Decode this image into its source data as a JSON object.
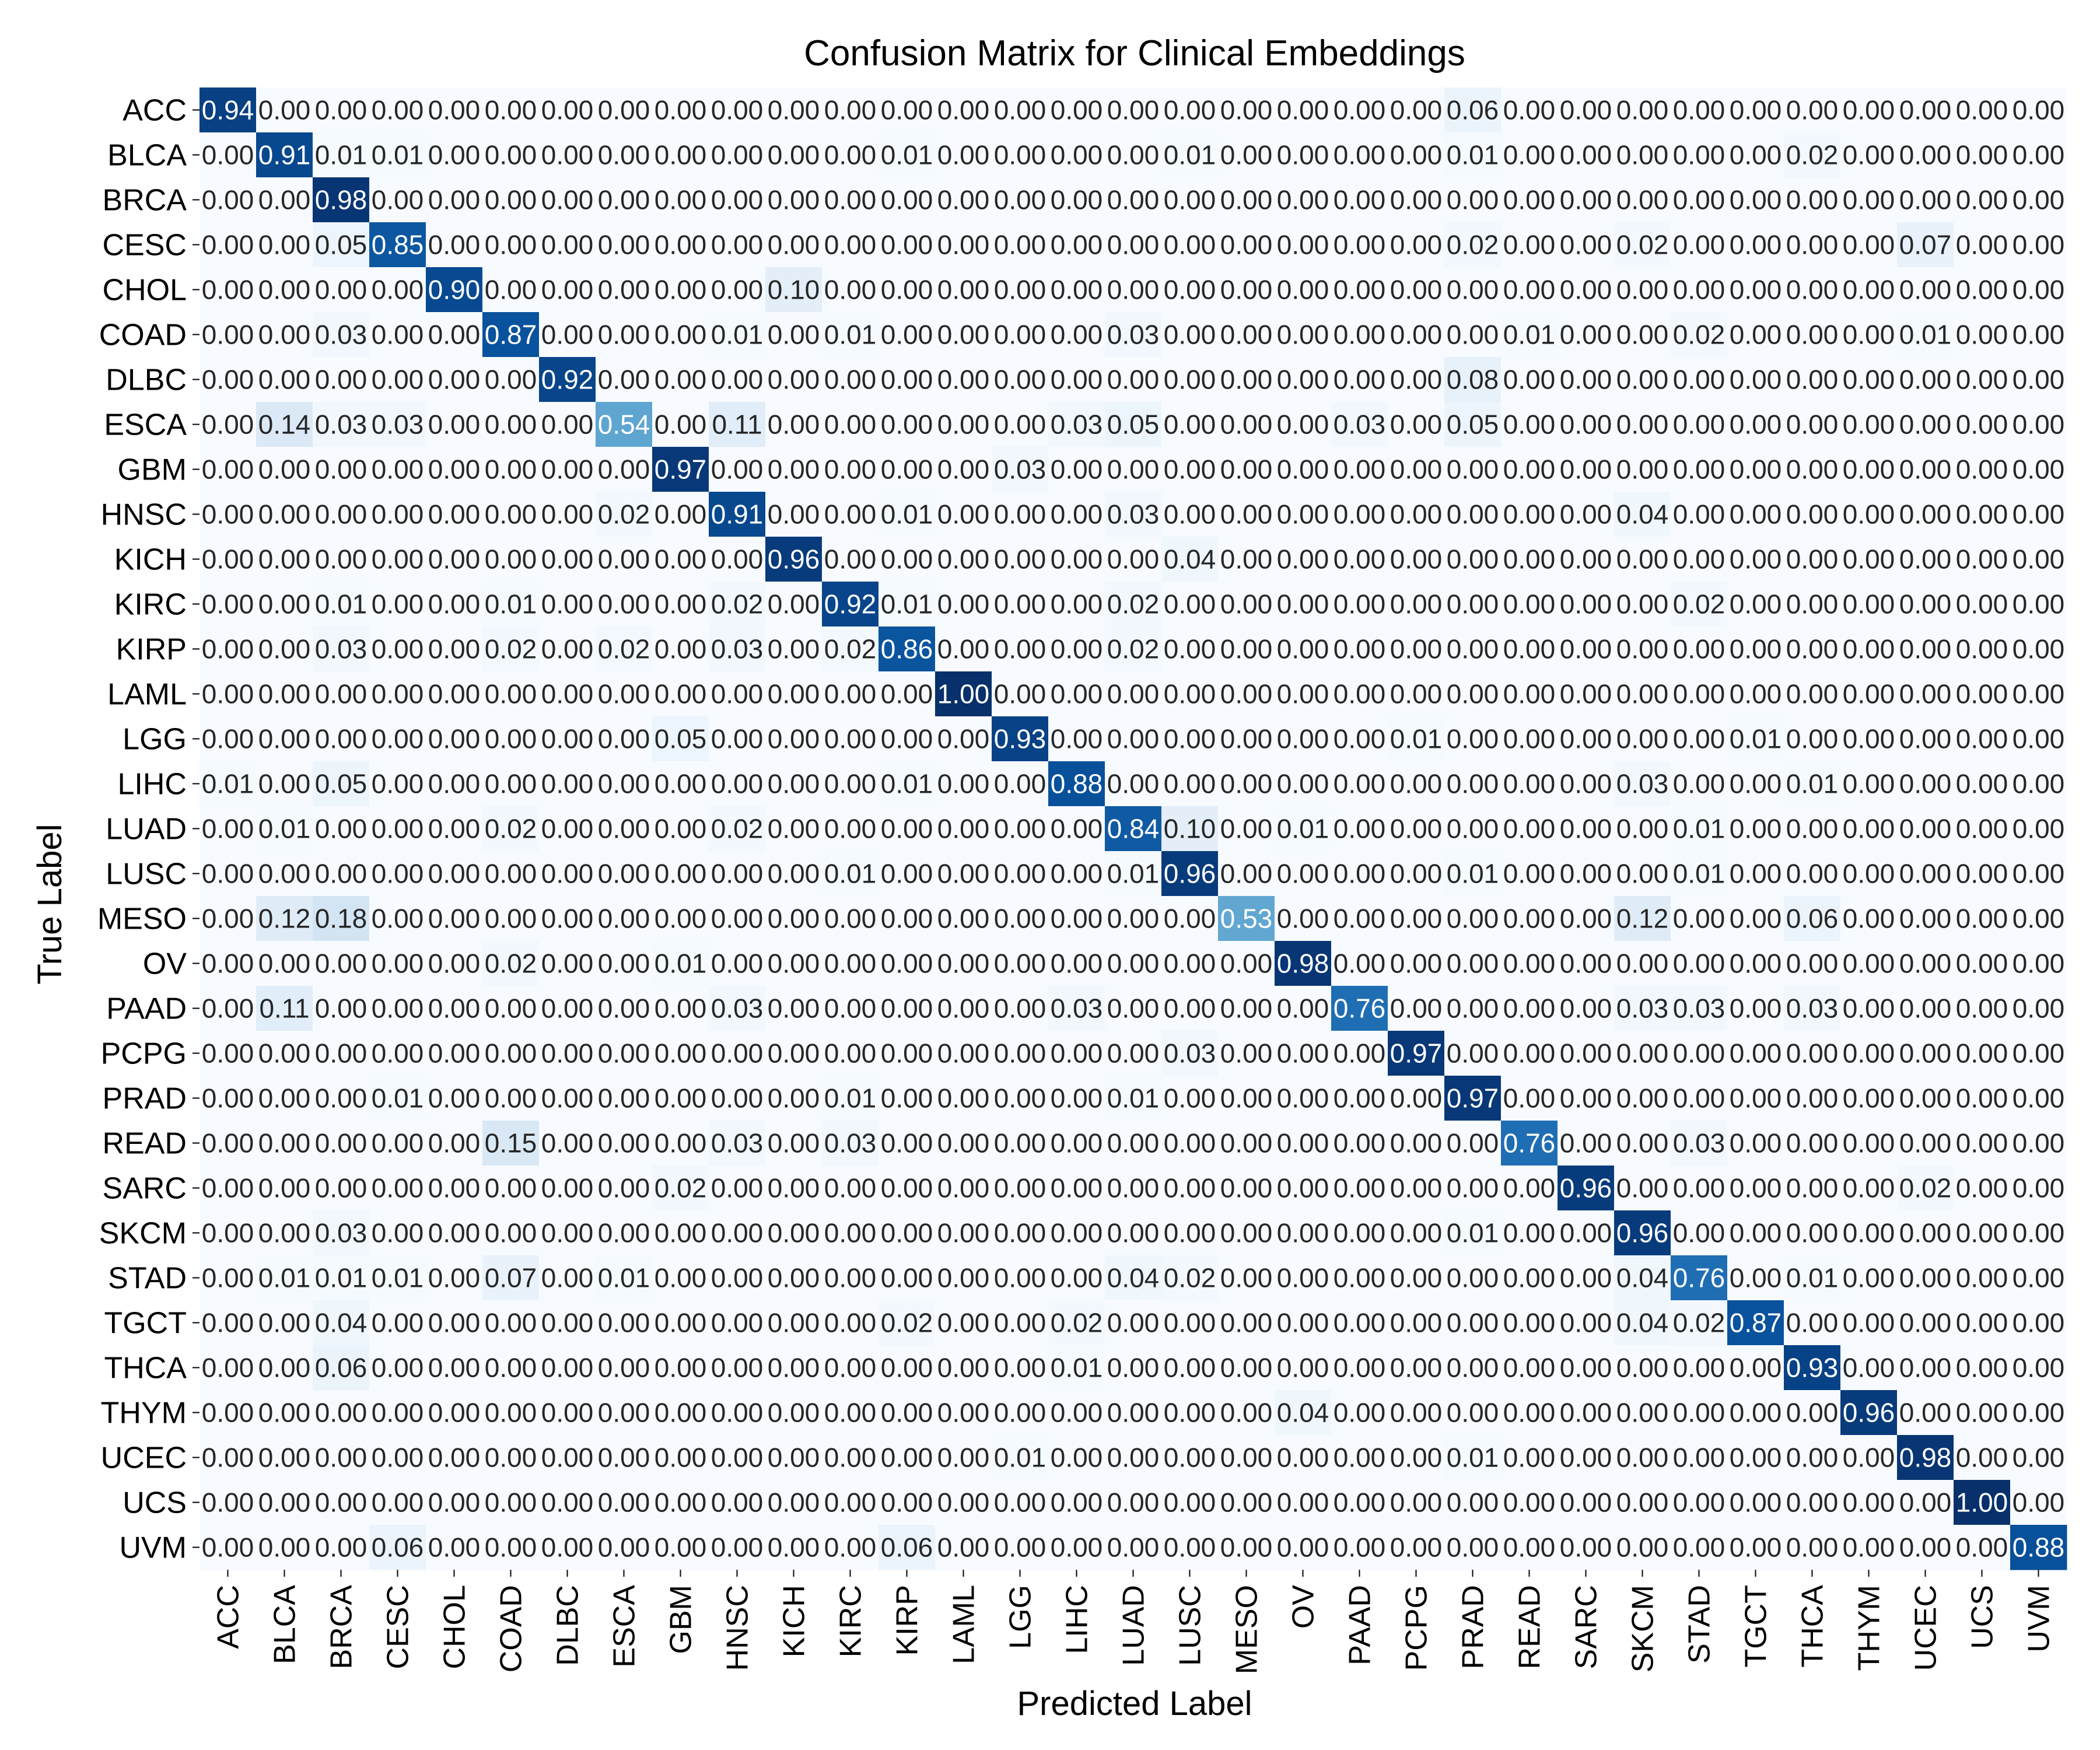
{
  "chart_data": {
    "type": "heatmap",
    "title": "Confusion Matrix for Clinical Embeddings",
    "xlabel": "Predicted Label",
    "ylabel": "True Label",
    "colormap": "Blues",
    "value_range": [
      0,
      1
    ],
    "value_format": "2 decimals",
    "colorbar": false,
    "labels": [
      "ACC",
      "BLCA",
      "BRCA",
      "CESC",
      "CHOL",
      "COAD",
      "DLBC",
      "ESCA",
      "GBM",
      "HNSC",
      "KICH",
      "KIRC",
      "KIRP",
      "LAML",
      "LGG",
      "LIHC",
      "LUAD",
      "LUSC",
      "MESO",
      "OV",
      "PAAD",
      "PCPG",
      "PRAD",
      "READ",
      "SARC",
      "SKCM",
      "STAD",
      "TGCT",
      "THCA",
      "THYM",
      "UCEC",
      "UCS",
      "UVM"
    ],
    "matrix": [
      [
        0.94,
        0,
        0,
        0,
        0,
        0,
        0,
        0,
        0,
        0,
        0,
        0,
        0,
        0,
        0,
        0,
        0,
        0,
        0,
        0,
        0,
        0,
        0.06,
        0,
        0,
        0,
        0,
        0,
        0,
        0,
        0,
        0,
        0
      ],
      [
        0,
        0.91,
        0.01,
        0.01,
        0,
        0,
        0,
        0,
        0,
        0,
        0,
        0,
        0.01,
        0,
        0,
        0,
        0,
        0.01,
        0,
        0,
        0,
        0,
        0.01,
        0,
        0,
        0,
        0,
        0,
        0.02,
        0,
        0,
        0,
        0
      ],
      [
        0,
        0,
        0.98,
        0,
        0,
        0,
        0,
        0,
        0,
        0,
        0,
        0,
        0,
        0,
        0,
        0,
        0,
        0,
        0,
        0,
        0,
        0,
        0,
        0,
        0,
        0,
        0,
        0,
        0,
        0,
        0,
        0,
        0
      ],
      [
        0,
        0,
        0.05,
        0.85,
        0,
        0,
        0,
        0,
        0,
        0,
        0,
        0,
        0,
        0,
        0,
        0,
        0,
        0,
        0,
        0,
        0,
        0,
        0.02,
        0,
        0,
        0.02,
        0,
        0,
        0,
        0,
        0.07,
        0,
        0
      ],
      [
        0,
        0,
        0,
        0,
        0.9,
        0,
        0,
        0,
        0,
        0,
        0.1,
        0,
        0,
        0,
        0,
        0,
        0,
        0,
        0,
        0,
        0,
        0,
        0,
        0,
        0,
        0,
        0,
        0,
        0,
        0,
        0,
        0,
        0
      ],
      [
        0,
        0,
        0.03,
        0,
        0,
        0.87,
        0,
        0,
        0,
        0.01,
        0,
        0.01,
        0,
        0,
        0,
        0,
        0.03,
        0,
        0,
        0,
        0,
        0,
        0,
        0.01,
        0,
        0,
        0.02,
        0,
        0,
        0,
        0.01,
        0,
        0
      ],
      [
        0,
        0,
        0,
        0,
        0,
        0,
        0.92,
        0,
        0,
        0,
        0,
        0,
        0,
        0,
        0,
        0,
        0,
        0,
        0,
        0,
        0,
        0,
        0.08,
        0,
        0,
        0,
        0,
        0,
        0,
        0,
        0,
        0,
        0
      ],
      [
        0,
        0.14,
        0.03,
        0.03,
        0,
        0,
        0,
        0.54,
        0,
        0.11,
        0,
        0,
        0,
        0,
        0,
        0.03,
        0.05,
        0,
        0,
        0,
        0.03,
        0,
        0.05,
        0,
        0,
        0,
        0,
        0,
        0,
        0,
        0,
        0,
        0
      ],
      [
        0,
        0,
        0,
        0,
        0,
        0,
        0,
        0,
        0.97,
        0,
        0,
        0,
        0,
        0,
        0.03,
        0,
        0,
        0,
        0,
        0,
        0,
        0,
        0,
        0,
        0,
        0,
        0,
        0,
        0,
        0,
        0,
        0,
        0
      ],
      [
        0,
        0,
        0,
        0,
        0,
        0,
        0,
        0.02,
        0,
        0.91,
        0,
        0,
        0.01,
        0,
        0,
        0,
        0.03,
        0,
        0,
        0,
        0,
        0,
        0,
        0,
        0,
        0.04,
        0,
        0,
        0,
        0,
        0,
        0,
        0
      ],
      [
        0,
        0,
        0,
        0,
        0,
        0,
        0,
        0,
        0,
        0,
        0.96,
        0,
        0,
        0,
        0,
        0,
        0,
        0.04,
        0,
        0,
        0,
        0,
        0,
        0,
        0,
        0,
        0,
        0,
        0,
        0,
        0,
        0,
        0
      ],
      [
        0,
        0,
        0.01,
        0,
        0,
        0.01,
        0,
        0,
        0,
        0.02,
        0,
        0.92,
        0.01,
        0,
        0,
        0,
        0.02,
        0,
        0,
        0,
        0,
        0,
        0,
        0,
        0,
        0,
        0.02,
        0,
        0,
        0,
        0,
        0,
        0
      ],
      [
        0,
        0,
        0.03,
        0,
        0,
        0.02,
        0,
        0.02,
        0,
        0.03,
        0,
        0.02,
        0.86,
        0,
        0,
        0,
        0.02,
        0,
        0,
        0,
        0,
        0,
        0,
        0,
        0,
        0,
        0,
        0,
        0,
        0,
        0,
        0,
        0
      ],
      [
        0,
        0,
        0,
        0,
        0,
        0,
        0,
        0,
        0,
        0,
        0,
        0,
        0,
        1.0,
        0,
        0,
        0,
        0,
        0,
        0,
        0,
        0,
        0,
        0,
        0,
        0,
        0,
        0,
        0,
        0,
        0,
        0,
        0
      ],
      [
        0,
        0,
        0,
        0,
        0,
        0,
        0,
        0,
        0.05,
        0,
        0,
        0,
        0,
        0,
        0.93,
        0,
        0,
        0,
        0,
        0,
        0,
        0.01,
        0,
        0,
        0,
        0,
        0,
        0.01,
        0,
        0,
        0,
        0,
        0
      ],
      [
        0.01,
        0,
        0.05,
        0,
        0,
        0,
        0,
        0,
        0,
        0,
        0,
        0,
        0.01,
        0,
        0,
        0.88,
        0,
        0,
        0,
        0,
        0,
        0,
        0,
        0,
        0,
        0.03,
        0,
        0,
        0.01,
        0,
        0,
        0,
        0
      ],
      [
        0,
        0.01,
        0,
        0,
        0,
        0.02,
        0,
        0,
        0,
        0.02,
        0,
        0,
        0,
        0,
        0,
        0,
        0.84,
        0.1,
        0,
        0.01,
        0,
        0,
        0,
        0,
        0,
        0,
        0.01,
        0,
        0,
        0,
        0,
        0,
        0
      ],
      [
        0,
        0,
        0,
        0,
        0,
        0,
        0,
        0,
        0,
        0,
        0,
        0.01,
        0,
        0,
        0,
        0,
        0.01,
        0.96,
        0,
        0,
        0,
        0,
        0.01,
        0,
        0,
        0,
        0.01,
        0,
        0,
        0,
        0,
        0,
        0
      ],
      [
        0,
        0.12,
        0.18,
        0,
        0,
        0,
        0,
        0,
        0,
        0,
        0,
        0,
        0,
        0,
        0,
        0,
        0,
        0,
        0.53,
        0,
        0,
        0,
        0,
        0,
        0,
        0.12,
        0,
        0,
        0.06,
        0,
        0,
        0,
        0
      ],
      [
        0,
        0,
        0,
        0,
        0,
        0.02,
        0,
        0,
        0.01,
        0,
        0,
        0,
        0,
        0,
        0,
        0,
        0,
        0,
        0,
        0.98,
        0,
        0,
        0,
        0,
        0,
        0,
        0,
        0,
        0,
        0,
        0,
        0,
        0
      ],
      [
        0,
        0.11,
        0,
        0,
        0,
        0,
        0,
        0,
        0,
        0.03,
        0,
        0,
        0,
        0,
        0,
        0.03,
        0,
        0,
        0,
        0,
        0.76,
        0,
        0,
        0,
        0,
        0.03,
        0.03,
        0,
        0.03,
        0,
        0,
        0,
        0
      ],
      [
        0,
        0,
        0,
        0,
        0,
        0,
        0,
        0,
        0,
        0,
        0,
        0,
        0,
        0,
        0,
        0,
        0,
        0.03,
        0,
        0,
        0,
        0.97,
        0,
        0,
        0,
        0,
        0,
        0,
        0,
        0,
        0,
        0,
        0
      ],
      [
        0,
        0,
        0,
        0.01,
        0,
        0,
        0,
        0,
        0,
        0,
        0,
        0.01,
        0,
        0,
        0,
        0,
        0.01,
        0,
        0,
        0,
        0,
        0,
        0.97,
        0,
        0,
        0,
        0,
        0,
        0,
        0,
        0,
        0,
        0
      ],
      [
        0,
        0,
        0,
        0,
        0,
        0.15,
        0,
        0,
        0,
        0.03,
        0,
        0.03,
        0,
        0,
        0,
        0,
        0,
        0,
        0,
        0,
        0,
        0,
        0,
        0.76,
        0,
        0,
        0.03,
        0,
        0,
        0,
        0,
        0,
        0
      ],
      [
        0,
        0,
        0,
        0,
        0,
        0,
        0,
        0,
        0.02,
        0,
        0,
        0,
        0,
        0,
        0,
        0,
        0,
        0,
        0,
        0,
        0,
        0,
        0,
        0,
        0.96,
        0,
        0,
        0,
        0,
        0,
        0.02,
        0,
        0
      ],
      [
        0,
        0,
        0.03,
        0,
        0,
        0,
        0,
        0,
        0,
        0,
        0,
        0,
        0,
        0,
        0,
        0,
        0,
        0,
        0,
        0,
        0,
        0,
        0.01,
        0,
        0,
        0.96,
        0,
        0,
        0,
        0,
        0,
        0,
        0
      ],
      [
        0,
        0.01,
        0.01,
        0.01,
        0,
        0.07,
        0,
        0.01,
        0,
        0,
        0,
        0,
        0,
        0,
        0,
        0,
        0.04,
        0.02,
        0,
        0,
        0,
        0,
        0,
        0,
        0,
        0.04,
        0.76,
        0,
        0.01,
        0,
        0,
        0,
        0
      ],
      [
        0,
        0,
        0.04,
        0,
        0,
        0,
        0,
        0,
        0,
        0,
        0,
        0,
        0.02,
        0,
        0,
        0.02,
        0,
        0,
        0,
        0,
        0,
        0,
        0,
        0,
        0,
        0.04,
        0.02,
        0.87,
        0,
        0,
        0,
        0,
        0
      ],
      [
        0,
        0,
        0.06,
        0,
        0,
        0,
        0,
        0,
        0,
        0,
        0,
        0,
        0,
        0,
        0,
        0.01,
        0,
        0,
        0,
        0,
        0,
        0,
        0,
        0,
        0,
        0,
        0,
        0,
        0.93,
        0,
        0,
        0,
        0
      ],
      [
        0,
        0,
        0,
        0,
        0,
        0,
        0,
        0,
        0,
        0,
        0,
        0,
        0,
        0,
        0,
        0,
        0,
        0,
        0,
        0.04,
        0,
        0,
        0,
        0,
        0,
        0,
        0,
        0,
        0,
        0.96,
        0,
        0,
        0
      ],
      [
        0,
        0,
        0,
        0,
        0,
        0,
        0,
        0,
        0,
        0,
        0,
        0,
        0,
        0,
        0.01,
        0,
        0,
        0,
        0,
        0,
        0,
        0,
        0.01,
        0,
        0,
        0,
        0,
        0,
        0,
        0,
        0.98,
        0,
        0
      ],
      [
        0,
        0,
        0,
        0,
        0,
        0,
        0,
        0,
        0,
        0,
        0,
        0,
        0,
        0,
        0,
        0,
        0,
        0,
        0,
        0,
        0,
        0,
        0,
        0,
        0,
        0,
        0,
        0,
        0,
        0,
        0,
        1.0,
        0
      ],
      [
        0,
        0,
        0,
        0.06,
        0,
        0,
        0,
        0,
        0,
        0,
        0,
        0,
        0.06,
        0,
        0,
        0,
        0,
        0,
        0,
        0,
        0,
        0,
        0,
        0,
        0,
        0,
        0,
        0,
        0,
        0,
        0,
        0,
        0.88
      ]
    ]
  }
}
